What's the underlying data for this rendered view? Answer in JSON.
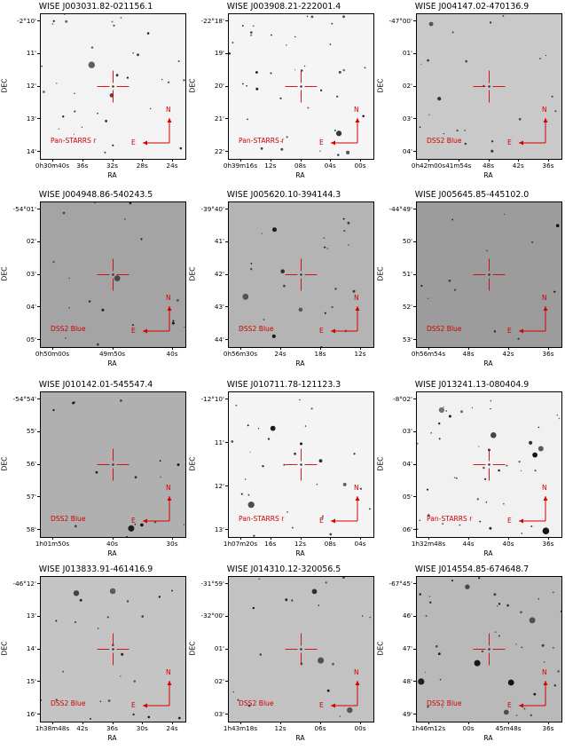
{
  "figure": {
    "compass": {
      "north": "N",
      "east": "E"
    },
    "colors": {
      "marker": "#d40000",
      "axes": "#000000"
    },
    "panels": [
      {
        "title": "WISE J003031.82-021156.1",
        "survey": "Pan-STARRS r",
        "xlabel": "RA",
        "ylabel": "DEC",
        "bg": "#f3f3f3",
        "stars": 34,
        "yticks": [
          "-2°10'",
          "11'",
          "12'",
          "13'",
          "14'"
        ],
        "xticks": [
          "0h30m40s",
          "36s",
          "32s",
          "28s",
          "24s"
        ]
      },
      {
        "title": "WISE J003908.21-222001.4",
        "survey": "Pan-STARRS r",
        "xlabel": "RA",
        "ylabel": "DEC",
        "bg": "#f5f5f5",
        "stars": 40,
        "yticks": [
          "-22°18'",
          "19'",
          "20'",
          "21'",
          "22'"
        ],
        "xticks": [
          "0h39m16s",
          "12s",
          "08s",
          "04s",
          "00s"
        ]
      },
      {
        "title": "WISE J004147.02-470136.9",
        "survey": "DSS2 Blue",
        "xlabel": "RA",
        "ylabel": "DEC",
        "bg": "#c9c9c9",
        "stars": 22,
        "yticks": [
          "-47°00'",
          "01'",
          "02'",
          "03'",
          "04'"
        ],
        "xticks": [
          "0h42m00s",
          "41m54s",
          "48s",
          "42s",
          "36s"
        ]
      },
      {
        "title": "WISE J004948.86-540243.5",
        "survey": "DSS2 Blue",
        "xlabel": "RA",
        "ylabel": "DEC",
        "bg": "#a4a4a4",
        "stars": 18,
        "yticks": [
          "-54°01'",
          "02'",
          "03'",
          "04'",
          "05'"
        ],
        "xticks": [
          "0h50m00s",
          "49m50s",
          "40s"
        ]
      },
      {
        "title": "WISE J005620.10-394144.3",
        "survey": "DSS2 Blue",
        "xlabel": "RA",
        "ylabel": "DEC",
        "bg": "#b4b4b4",
        "stars": 24,
        "yticks": [
          "-39°40'",
          "41'",
          "42'",
          "43'",
          "44'"
        ],
        "xticks": [
          "0h56m30s",
          "24s",
          "18s",
          "12s"
        ]
      },
      {
        "title": "WISE J005645.85-445102.0",
        "survey": "DSS2 Blue",
        "xlabel": "RA",
        "ylabel": "DEC",
        "bg": "#9c9c9c",
        "stars": 12,
        "yticks": [
          "-44°49'",
          "50'",
          "51'",
          "52'",
          "53'"
        ],
        "xticks": [
          "0h56m54s",
          "48s",
          "42s",
          "36s"
        ]
      },
      {
        "title": "WISE J010142.01-545547.4",
        "survey": "DSS2 Blue",
        "xlabel": "RA",
        "ylabel": "DEC",
        "bg": "#b0b0b0",
        "stars": 16,
        "yticks": [
          "-54°54'",
          "55'",
          "56'",
          "57'",
          "58'"
        ],
        "xticks": [
          "1h01m50s",
          "40s",
          "30s"
        ]
      },
      {
        "title": "WISE J010711.78-121123.3",
        "survey": "Pan-STARRS r",
        "xlabel": "RA",
        "ylabel": "DEC",
        "bg": "#f4f4f4",
        "stars": 30,
        "yticks": [
          "-12°10'",
          "11'",
          "12'",
          "13'"
        ],
        "xticks": [
          "1h07m20s",
          "16s",
          "12s",
          "08s",
          "04s"
        ]
      },
      {
        "title": "WISE J013241.13-080404.9",
        "survey": "Pan-STARRS r",
        "xlabel": "RA",
        "ylabel": "DEC",
        "bg": "#f1f1f1",
        "stars": 44,
        "yticks": [
          "-8°02'",
          "03'",
          "04'",
          "05'",
          "06'"
        ],
        "xticks": [
          "1h32m48s",
          "44s",
          "40s",
          "36s"
        ]
      },
      {
        "title": "WISE J013833.91-461416.9",
        "survey": "DSS2 Blue",
        "xlabel": "RA",
        "ylabel": "DEC",
        "bg": "#c4c4c4",
        "stars": 24,
        "yticks": [
          "-46°12'",
          "13'",
          "14'",
          "15'",
          "16'"
        ],
        "xticks": [
          "1h38m48s",
          "42s",
          "36s",
          "30s",
          "24s"
        ]
      },
      {
        "title": "WISE J014310.12-320056.5",
        "survey": "DSS2 Blue",
        "xlabel": "RA",
        "ylabel": "DEC",
        "bg": "#c2c2c2",
        "stars": 20,
        "yticks": [
          "-31°59'",
          "-32°00'",
          "01'",
          "02'",
          "03'"
        ],
        "xticks": [
          "1h43m18s",
          "12s",
          "06s",
          "00s"
        ]
      },
      {
        "title": "WISE J014554.85-674648.7",
        "survey": "DSS2 Blue",
        "xlabel": "RA",
        "ylabel": "DEC",
        "bg": "#b9b9b9",
        "stars": 40,
        "yticks": [
          "-67°45'",
          "46'",
          "47'",
          "48'",
          "49'"
        ],
        "xticks": [
          "1h46m12s",
          "00s",
          "45m48s",
          "36s"
        ]
      }
    ]
  }
}
